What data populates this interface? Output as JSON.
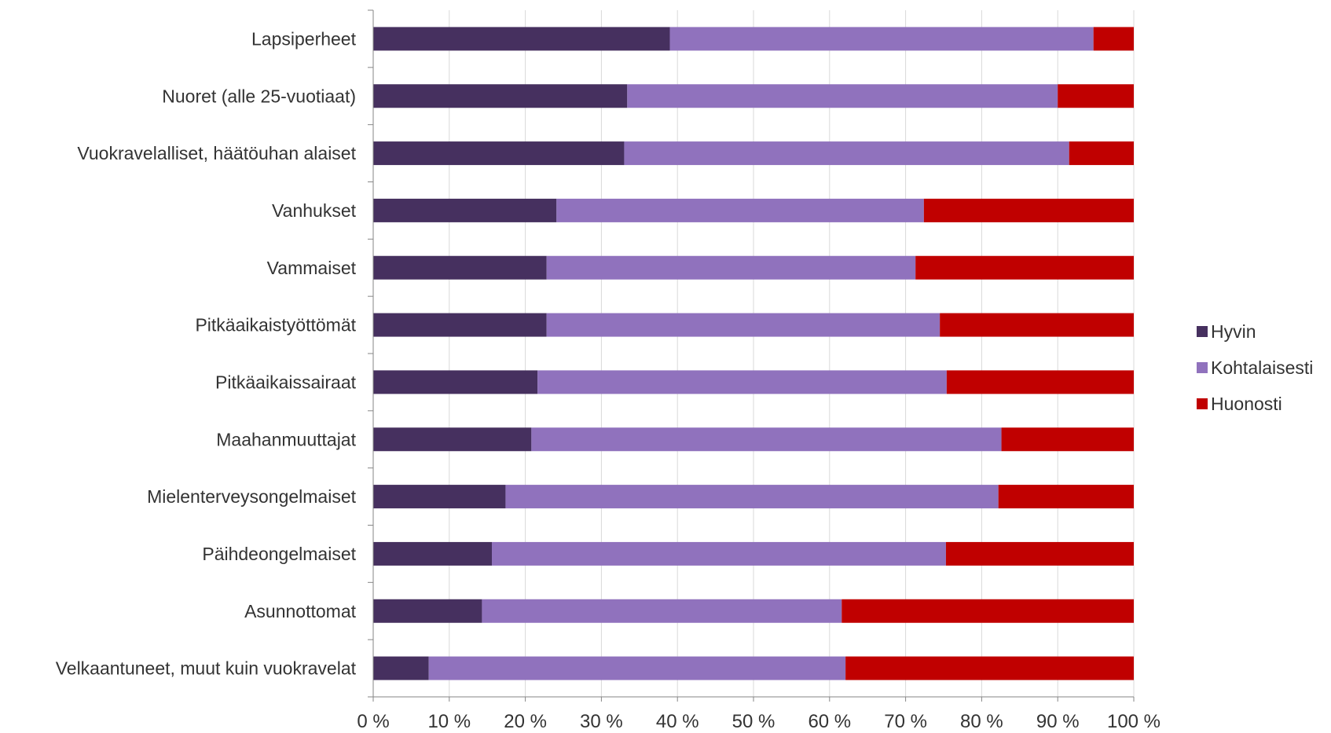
{
  "chart_data": {
    "type": "bar",
    "orientation": "horizontal",
    "stacked": "percent",
    "title": "",
    "xlabel": "",
    "ylabel": "",
    "xlim": [
      0,
      100
    ],
    "x_ticks": [
      "0 %",
      "10 %",
      "20 %",
      "30 %",
      "40 %",
      "50 %",
      "60 %",
      "70 %",
      "80 %",
      "90 %",
      "100 %"
    ],
    "grid": "vertical",
    "legend_position": "right",
    "categories": [
      "Lapsiperheet",
      "Nuoret (alle 25-vuotiaat)",
      "Vuokravelalliset, häätöuhan alaiset",
      "Vanhukset",
      "Vammaiset",
      "Pitkäaikaistyöttömät",
      "Pitkäaikaissairaat",
      "Maahanmuuttajat",
      "Mielenterveysongelmaiset",
      "Päihdeongelmaiset",
      "Asunnottomat",
      "Velkaantuneet, muut kuin vuokravelat"
    ],
    "series": [
      {
        "name": "Hyvin",
        "color": "#46305f",
        "values": [
          39,
          33.4,
          33,
          24.1,
          22.8,
          22.8,
          21.6,
          20.8,
          17.4,
          15.6,
          14.3,
          7.3
        ]
      },
      {
        "name": "Kohtalaisesti",
        "color": "#9072bd",
        "values": [
          55.7,
          56.6,
          58.5,
          48.3,
          48.5,
          51.7,
          53.8,
          61.8,
          64.8,
          59.7,
          47.3,
          54.8
        ]
      },
      {
        "name": "Huonosti",
        "color": "#c00000",
        "values": [
          5.3,
          10,
          8.5,
          27.6,
          28.7,
          25.5,
          24.6,
          17.4,
          17.8,
          24.7,
          38.4,
          37.9
        ]
      }
    ]
  }
}
